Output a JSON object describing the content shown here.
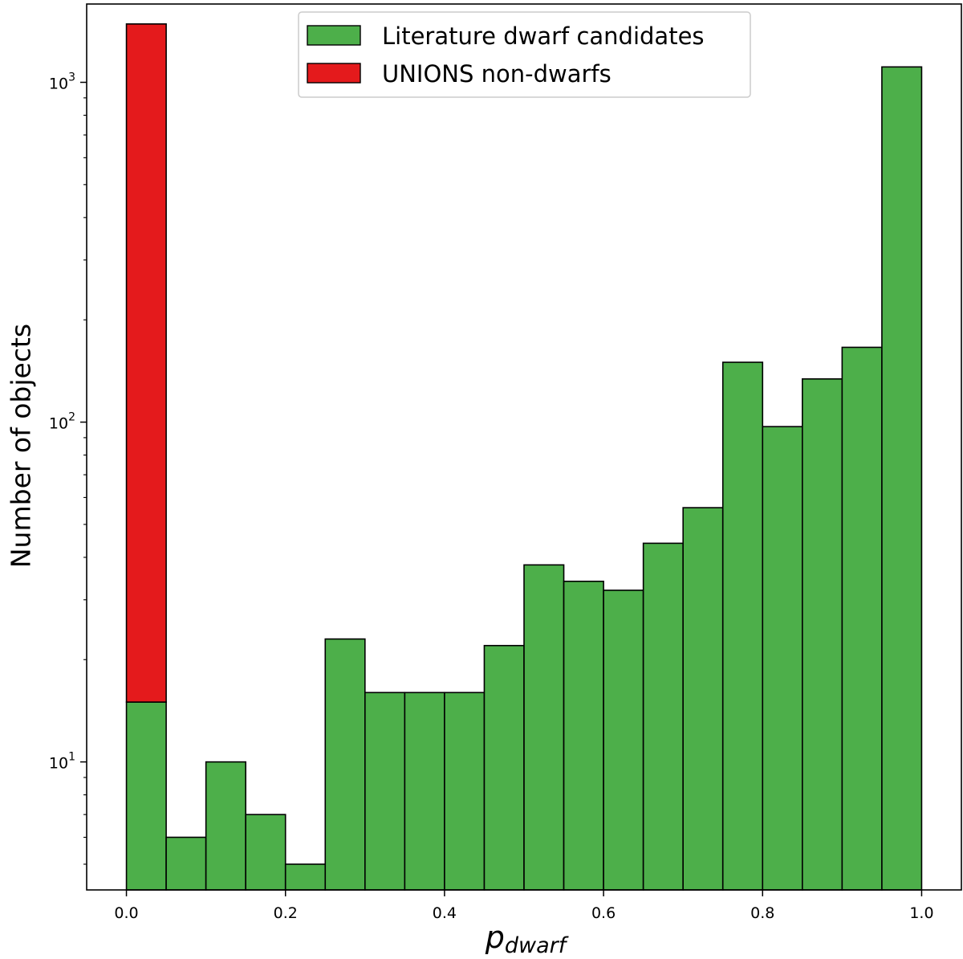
{
  "chart_data": {
    "type": "bar",
    "subtype": "stacked-histogram",
    "y_scale": "log",
    "ylim": [
      4.2,
      1700
    ],
    "xlim": [
      -0.05,
      1.05
    ],
    "xlabel": "p",
    "xlabel_subscript": "dwarf",
    "ylabel": "Number of objects",
    "x_ticks": [
      0.0,
      0.2,
      0.4,
      0.6,
      0.8,
      1.0
    ],
    "x_tick_labels": [
      "0.0",
      "0.2",
      "0.4",
      "0.6",
      "0.8",
      "1.0"
    ],
    "y_ticks": [
      {
        "value": 10,
        "base": "10",
        "exp": "1"
      },
      {
        "value": 100,
        "base": "10",
        "exp": "2"
      },
      {
        "value": 1000,
        "base": "10",
        "exp": "3"
      }
    ],
    "bin_edges": [
      0.0,
      0.05,
      0.1,
      0.15,
      0.2,
      0.25,
      0.3,
      0.35,
      0.4,
      0.45,
      0.5,
      0.55,
      0.6,
      0.65,
      0.7,
      0.75,
      0.8,
      0.85,
      0.9,
      0.95,
      1.0
    ],
    "series": [
      {
        "name": "Literature dwarf candidates",
        "color": "#4daf4a",
        "values": [
          15,
          6,
          10,
          7,
          5,
          23,
          16,
          16,
          16,
          22,
          38,
          34,
          32,
          44,
          56,
          150,
          97,
          134,
          166,
          1110
        ]
      },
      {
        "name": "UNIONS non-dwarfs",
        "color": "#e41a1c",
        "values": [
          1470,
          0,
          0,
          0,
          0,
          0,
          0,
          0,
          0,
          0,
          0,
          0,
          0,
          0,
          0,
          0,
          0,
          0,
          0,
          0
        ]
      }
    ],
    "legend_position": "upper-center",
    "grid": false
  }
}
